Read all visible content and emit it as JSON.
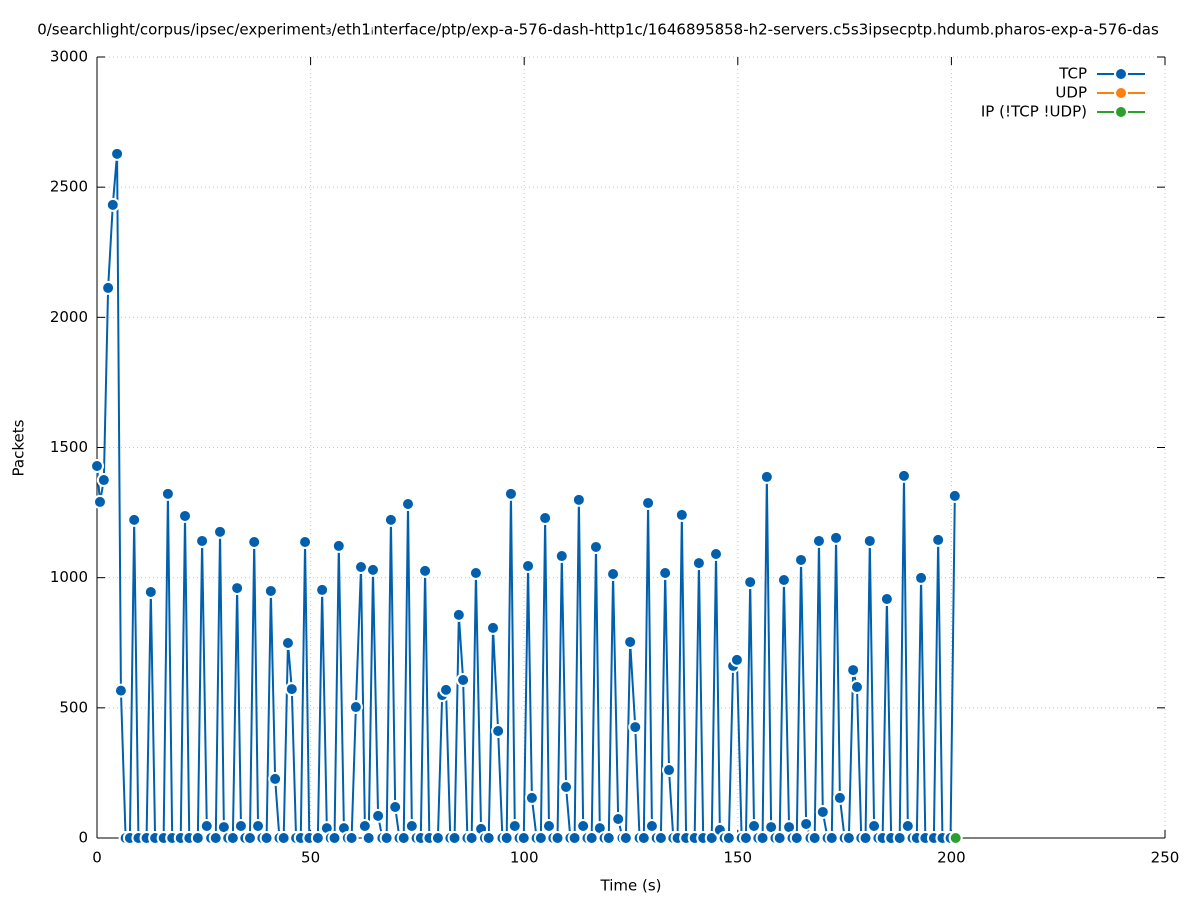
{
  "chart_data": {
    "type": "line",
    "title": "0/searchlight/corpus/ipsec/experiment₃/eth1ᵢnterface/ptp/exp-a-576-dash-http1c/1646895858-h2-servers.c5s3ipsecptp.hdumb.pharos-exp-a-576-das",
    "x_label": "Time (s)",
    "y_label": "Packets",
    "xlim": [
      0,
      250
    ],
    "ylim": [
      0,
      3000
    ],
    "xticks": [
      0,
      50,
      100,
      150,
      200,
      250
    ],
    "yticks": [
      0,
      500,
      1000,
      1500,
      2000,
      2500,
      3000
    ],
    "grid": true,
    "legend": "top-right",
    "series": [
      {
        "name": "TCP",
        "color": "#0060ad",
        "x": [
          0,
          0.7,
          1.6,
          2.6,
          3.7,
          4.7,
          5.6,
          6.7,
          7.7,
          8.7,
          9.7,
          11.6,
          12.6,
          13.6,
          15.6,
          16.6,
          17.6,
          19.6,
          20.6,
          21.6,
          23.6,
          24.6,
          25.7,
          26.7,
          27.8,
          28.8,
          29.7,
          30.7,
          31.8,
          32.8,
          33.7,
          34.7,
          35.8,
          36.8,
          37.7,
          38.7,
          39.7,
          40.7,
          41.7,
          42.7,
          43.7,
          44.7,
          45.6,
          46.6,
          47.7,
          48.7,
          49.7,
          51.7,
          52.7,
          53.8,
          54.7,
          55.6,
          56.6,
          57.8,
          58.7,
          59.6,
          60.6,
          61.8,
          62.7,
          63.6,
          64.6,
          65.8,
          66.8,
          67.8,
          68.8,
          69.8,
          70.8,
          71.8,
          72.8,
          73.7,
          74.8,
          75.8,
          76.8,
          77.8,
          79.8,
          80.8,
          81.7,
          82.7,
          83.7,
          84.7,
          85.7,
          86.7,
          87.7,
          88.7,
          89.9,
          90.8,
          91.7,
          92.7,
          93.9,
          94.9,
          95.9,
          96.9,
          97.8,
          98.9,
          99.9,
          100.9,
          101.8,
          102.9,
          103.9,
          104.9,
          105.8,
          106.8,
          107.8,
          108.8,
          109.8,
          110.8,
          111.8,
          112.8,
          113.8,
          114.8,
          115.8,
          116.8,
          117.7,
          118.8,
          119.8,
          120.8,
          122,
          123,
          123.8,
          124.8,
          126,
          127,
          128,
          129,
          129.9,
          131,
          132,
          133,
          133.9,
          134.9,
          135.9,
          136.9,
          137.9,
          139.9,
          140.9,
          141.9,
          143.9,
          144.9,
          145.8,
          146.9,
          147.9,
          148.9,
          149.8,
          150.9,
          151.9,
          152.9,
          153.8,
          154.8,
          155.8,
          156.8,
          157.8,
          158.8,
          159.8,
          160.8,
          162,
          162.8,
          163.8,
          164.8,
          166,
          167,
          168,
          169,
          169.9,
          171,
          172,
          173,
          173.9,
          175,
          176,
          177,
          177.9,
          178.9,
          179.9,
          180.9,
          181.9,
          182.9,
          183.9,
          184.9,
          185.9,
          187.9,
          188.9,
          189.8,
          190.9,
          191.9,
          192.9,
          193.9,
          195.9,
          196.9,
          197.9,
          199.8,
          200.8
        ],
        "values": [
          1429,
          1291,
          1375,
          2113,
          2432,
          2628,
          566,
          0,
          0,
          1222,
          0,
          0,
          945,
          0,
          0,
          1322,
          0,
          0,
          1237,
          0,
          0,
          1141,
          46,
          0,
          0,
          1176,
          42,
          0,
          0,
          960,
          46,
          0,
          0,
          1137,
          46,
          0,
          0,
          949,
          227,
          0,
          0,
          749,
          572,
          0,
          0,
          1137,
          0,
          0,
          953,
          38,
          0,
          0,
          1122,
          38,
          0,
          0,
          503,
          1041,
          46,
          0,
          1030,
          85,
          0,
          0,
          1222,
          119,
          0,
          0,
          1283,
          46,
          0,
          0,
          1026,
          0,
          0,
          549,
          569,
          0,
          0,
          857,
          607,
          0,
          0,
          1018,
          35,
          0,
          0,
          807,
          411,
          0,
          0,
          1322,
          46,
          0,
          0,
          1045,
          154,
          0,
          0,
          1229,
          46,
          0,
          0,
          1083,
          196,
          0,
          0,
          1299,
          46,
          0,
          0,
          1118,
          38,
          0,
          0,
          1014,
          73,
          0,
          0,
          753,
          426,
          0,
          0,
          1287,
          46,
          0,
          0,
          1018,
          261,
          0,
          0,
          1241,
          0,
          0,
          1056,
          0,
          0,
          1091,
          31,
          0,
          0,
          661,
          684,
          0,
          0,
          983,
          46,
          0,
          0,
          1387,
          42,
          0,
          0,
          991,
          42,
          0,
          0,
          1068,
          54,
          0,
          0,
          1141,
          100,
          0,
          0,
          1153,
          154,
          0,
          0,
          645,
          580,
          0,
          0,
          1141,
          46,
          0,
          0,
          918,
          0,
          0,
          1391,
          46,
          0,
          0,
          999,
          0,
          0,
          1145,
          0,
          0,
          1314
        ]
      },
      {
        "name": "UDP",
        "color": "#ff7f0e",
        "x": [
          201
        ],
        "values": [
          0
        ]
      },
      {
        "name": "IP (!TCP  !UDP)",
        "color": "#2ca02c",
        "x": [
          201
        ],
        "values": [
          0
        ]
      }
    ]
  }
}
